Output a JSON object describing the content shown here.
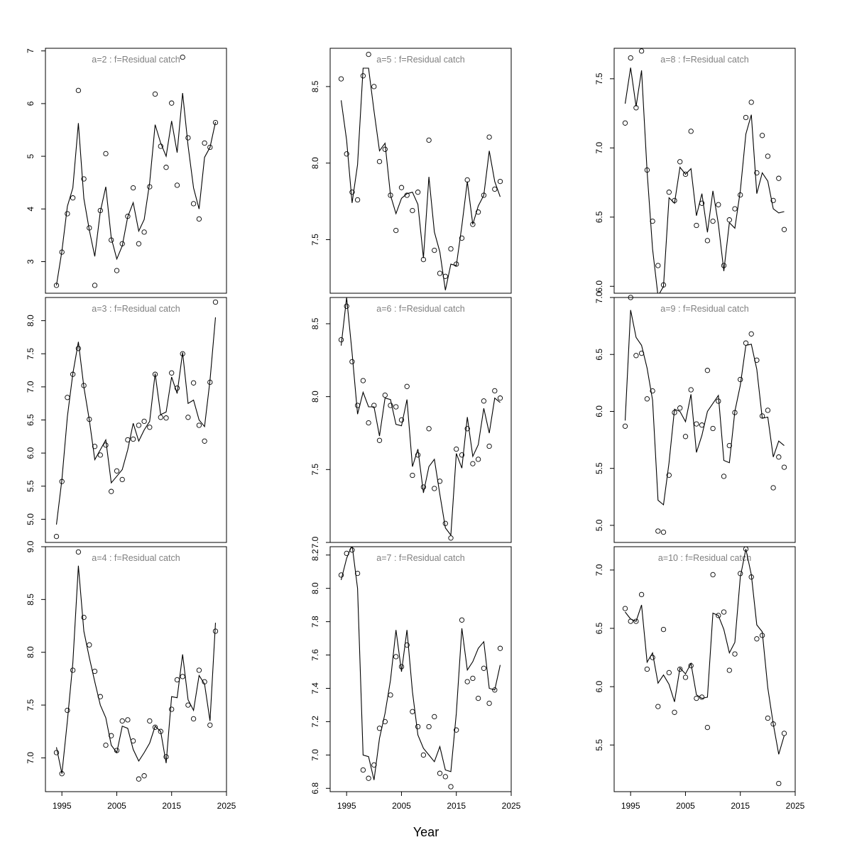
{
  "chart_data": {
    "type": "line",
    "xlabel": "Year",
    "years": [
      1994,
      1995,
      1996,
      1997,
      1998,
      1999,
      2000,
      2001,
      2002,
      2003,
      2004,
      2005,
      2006,
      2007,
      2008,
      2009,
      2010,
      2011,
      2012,
      2013,
      2014,
      2015,
      2016,
      2017,
      2018,
      2019,
      2020,
      2021,
      2022,
      2023
    ],
    "xlim": [
      1992,
      2025
    ],
    "xticks": [
      1995,
      2005,
      2015,
      2025
    ],
    "panels": [
      {
        "title": "a=2  :  f=Residual catch",
        "ylim": [
          2.4,
          7.05
        ],
        "yticks": [
          3,
          4,
          5,
          6,
          7
        ],
        "decimals": 0,
        "observed": [
          2.55,
          3.18,
          3.91,
          4.21,
          6.25,
          4.57,
          3.64,
          2.55,
          3.97,
          5.05,
          3.41,
          2.83,
          3.34,
          3.86,
          4.4,
          3.34,
          3.56,
          4.42,
          6.18,
          5.19,
          4.79,
          6.01,
          4.45,
          6.88,
          5.35,
          4.1,
          3.81,
          5.25,
          5.17,
          5.64
        ],
        "fitted": [
          2.55,
          3.2,
          4.05,
          4.4,
          5.63,
          4.2,
          3.6,
          3.1,
          3.95,
          4.42,
          3.45,
          3.05,
          3.3,
          3.85,
          4.12,
          3.58,
          3.8,
          4.5,
          5.6,
          5.25,
          5.0,
          5.67,
          5.07,
          6.2,
          5.2,
          4.4,
          4.0,
          4.98,
          5.17,
          5.65
        ]
      },
      {
        "title": "a=3  :  f=Residual catch",
        "ylim": [
          4.65,
          8.35
        ],
        "yticks": [
          5.0,
          5.5,
          6.0,
          6.5,
          7.0,
          7.5,
          8.0
        ],
        "decimals": 1,
        "observed": [
          4.74,
          5.57,
          6.84,
          7.19,
          7.58,
          7.02,
          6.51,
          6.1,
          5.97,
          6.12,
          5.42,
          5.73,
          5.6,
          6.2,
          6.21,
          6.42,
          6.48,
          6.39,
          7.19,
          6.54,
          6.53,
          7.21,
          6.98,
          7.5,
          6.54,
          7.06,
          6.42,
          6.18,
          7.07,
          8.28
        ],
        "fitted": [
          4.92,
          5.6,
          6.55,
          7.2,
          7.68,
          7.0,
          6.5,
          5.9,
          6.05,
          6.2,
          5.55,
          5.65,
          5.75,
          6.05,
          6.45,
          6.18,
          6.35,
          6.48,
          7.2,
          6.58,
          6.62,
          7.15,
          6.9,
          7.52,
          6.75,
          6.8,
          6.5,
          6.4,
          7.1,
          8.05
        ]
      },
      {
        "title": "a=4  :  f=Residual catch",
        "ylim": [
          6.68,
          9.0
        ],
        "yticks": [
          7.0,
          7.5,
          8.0,
          8.5,
          9.0
        ],
        "decimals": 1,
        "observed": [
          7.05,
          6.85,
          7.45,
          7.83,
          8.95,
          8.33,
          8.07,
          7.82,
          7.58,
          7.12,
          7.21,
          7.07,
          7.35,
          7.36,
          7.16,
          6.8,
          6.83,
          7.35,
          7.29,
          7.25,
          7.01,
          7.46,
          7.74,
          7.77,
          7.5,
          7.37,
          7.83,
          7.72,
          7.31,
          8.2
        ],
        "fitted": [
          7.1,
          6.85,
          7.35,
          7.9,
          8.82,
          8.2,
          7.95,
          7.72,
          7.5,
          7.38,
          7.12,
          7.05,
          7.3,
          7.28,
          7.08,
          6.97,
          7.05,
          7.14,
          7.3,
          7.25,
          6.95,
          7.58,
          7.57,
          7.98,
          7.55,
          7.45,
          7.78,
          7.7,
          7.35,
          8.28
        ]
      },
      {
        "title": "a=5  :  f=Residual catch",
        "ylim": [
          7.15,
          8.75
        ],
        "yticks": [
          7.5,
          8.0,
          8.5
        ],
        "decimals": 1,
        "observed": [
          8.55,
          8.06,
          7.81,
          7.76,
          8.57,
          8.71,
          8.5,
          8.01,
          8.09,
          7.79,
          7.56,
          7.84,
          7.79,
          7.69,
          7.81,
          7.37,
          8.15,
          7.43,
          7.28,
          7.26,
          7.44,
          7.34,
          7.51,
          7.89,
          7.6,
          7.68,
          7.79,
          8.17,
          7.83,
          7.88
        ],
        "fitted": [
          8.41,
          8.15,
          7.74,
          7.99,
          8.62,
          8.62,
          8.34,
          8.08,
          8.13,
          7.79,
          7.67,
          7.77,
          7.8,
          7.81,
          7.73,
          7.38,
          7.91,
          7.55,
          7.42,
          7.17,
          7.34,
          7.33,
          7.59,
          7.88,
          7.6,
          7.72,
          7.79,
          8.08,
          7.88,
          7.78
        ]
      },
      {
        "title": "a=6  :  f=Residual catch",
        "ylim": [
          7.0,
          8.68
        ],
        "yticks": [
          7.0,
          7.5,
          8.0,
          8.5
        ],
        "decimals": 1,
        "observed": [
          8.39,
          8.62,
          8.24,
          7.94,
          8.11,
          7.82,
          7.94,
          7.7,
          8.01,
          7.94,
          7.93,
          7.84,
          8.07,
          7.46,
          7.6,
          7.38,
          7.78,
          7.37,
          7.42,
          7.13,
          7.03,
          7.64,
          7.6,
          7.78,
          7.54,
          7.57,
          7.97,
          7.66,
          8.04,
          7.99
        ],
        "fitted": [
          8.35,
          8.68,
          8.3,
          7.88,
          8.03,
          7.93,
          7.93,
          7.73,
          7.99,
          7.98,
          7.81,
          7.8,
          7.98,
          7.52,
          7.64,
          7.34,
          7.52,
          7.57,
          7.33,
          7.1,
          7.05,
          7.61,
          7.51,
          7.86,
          7.59,
          7.67,
          7.92,
          7.75,
          7.99,
          7.96
        ]
      },
      {
        "title": "a=7  :  f=Residual catch",
        "ylim": [
          6.78,
          8.25
        ],
        "yticks": [
          6.8,
          7.0,
          7.2,
          7.4,
          7.6,
          7.8,
          8.0,
          8.2
        ],
        "decimals": 1,
        "observed": [
          8.08,
          8.21,
          8.23,
          8.09,
          6.91,
          6.86,
          6.94,
          7.16,
          7.2,
          7.36,
          7.59,
          7.53,
          7.66,
          7.26,
          7.17,
          7.0,
          7.17,
          7.23,
          6.89,
          6.87,
          6.81,
          7.15,
          7.81,
          7.44,
          7.46,
          7.34,
          7.52,
          7.31,
          7.39,
          7.64
        ],
        "fitted": [
          8.05,
          8.18,
          8.26,
          8.0,
          7.0,
          6.99,
          6.85,
          7.1,
          7.25,
          7.45,
          7.75,
          7.5,
          7.75,
          7.38,
          7.12,
          7.04,
          7.0,
          6.96,
          7.05,
          6.91,
          6.9,
          7.25,
          7.76,
          7.51,
          7.56,
          7.64,
          7.68,
          7.4,
          7.39,
          7.54
        ]
      },
      {
        "title": "a=8  :  f=Residual catch",
        "ylim": [
          5.95,
          7.72
        ],
        "yticks": [
          6.0,
          6.5,
          7.0,
          7.5
        ],
        "decimals": 1,
        "observed": [
          7.18,
          7.65,
          7.29,
          7.7,
          6.84,
          6.47,
          6.15,
          6.01,
          6.68,
          6.62,
          6.9,
          6.81,
          7.12,
          6.44,
          6.6,
          6.33,
          6.47,
          6.59,
          6.15,
          6.48,
          6.56,
          6.66,
          7.22,
          7.33,
          6.82,
          7.09,
          6.94,
          6.62,
          6.78,
          6.41
        ],
        "fitted": [
          7.32,
          7.58,
          7.3,
          7.56,
          6.83,
          6.27,
          5.93,
          6.0,
          6.64,
          6.6,
          6.86,
          6.81,
          6.85,
          6.51,
          6.67,
          6.39,
          6.69,
          6.45,
          6.11,
          6.46,
          6.42,
          6.69,
          7.1,
          7.24,
          6.67,
          6.82,
          6.76,
          6.56,
          6.53,
          6.54
        ]
      },
      {
        "title": "a=9  :  f=Residual catch",
        "ylim": [
          4.85,
          7.0
        ],
        "yticks": [
          5.0,
          5.5,
          6.0,
          6.5,
          7.0
        ],
        "decimals": 1,
        "observed": [
          5.87,
          7.0,
          6.49,
          6.51,
          6.11,
          6.18,
          4.95,
          4.94,
          5.44,
          5.99,
          6.03,
          5.78,
          6.19,
          5.89,
          5.88,
          6.36,
          5.85,
          6.09,
          5.43,
          5.7,
          5.99,
          6.28,
          6.6,
          6.68,
          6.45,
          5.96,
          6.01,
          5.33,
          5.6,
          5.51
        ],
        "fitted": [
          5.92,
          6.89,
          6.65,
          6.58,
          6.38,
          6.1,
          5.22,
          5.18,
          5.55,
          6.02,
          6.0,
          5.91,
          6.15,
          5.64,
          5.79,
          6.0,
          6.07,
          6.14,
          5.57,
          5.55,
          6.0,
          6.23,
          6.58,
          6.59,
          6.37,
          5.94,
          5.95,
          5.6,
          5.74,
          5.7
        ]
      },
      {
        "title": "a=10  :  f=Residual catch",
        "ylim": [
          5.1,
          7.2
        ],
        "yticks": [
          5.5,
          6.0,
          6.5,
          7.0
        ],
        "decimals": 1,
        "observed": [
          6.67,
          6.56,
          6.56,
          6.79,
          6.15,
          6.25,
          5.83,
          6.49,
          6.12,
          5.78,
          6.15,
          6.08,
          6.18,
          5.9,
          5.91,
          5.65,
          6.96,
          6.61,
          6.64,
          6.14,
          6.28,
          6.97,
          7.18,
          6.94,
          6.41,
          6.44,
          5.73,
          5.68,
          5.17,
          5.6
        ],
        "fitted": [
          6.64,
          6.58,
          6.56,
          6.7,
          6.21,
          6.29,
          6.03,
          6.1,
          6.02,
          5.87,
          6.16,
          6.11,
          6.2,
          5.93,
          5.9,
          5.91,
          6.63,
          6.61,
          6.49,
          6.29,
          6.38,
          6.94,
          7.18,
          6.96,
          6.53,
          6.47,
          5.99,
          5.68,
          5.42,
          5.58
        ]
      }
    ]
  }
}
